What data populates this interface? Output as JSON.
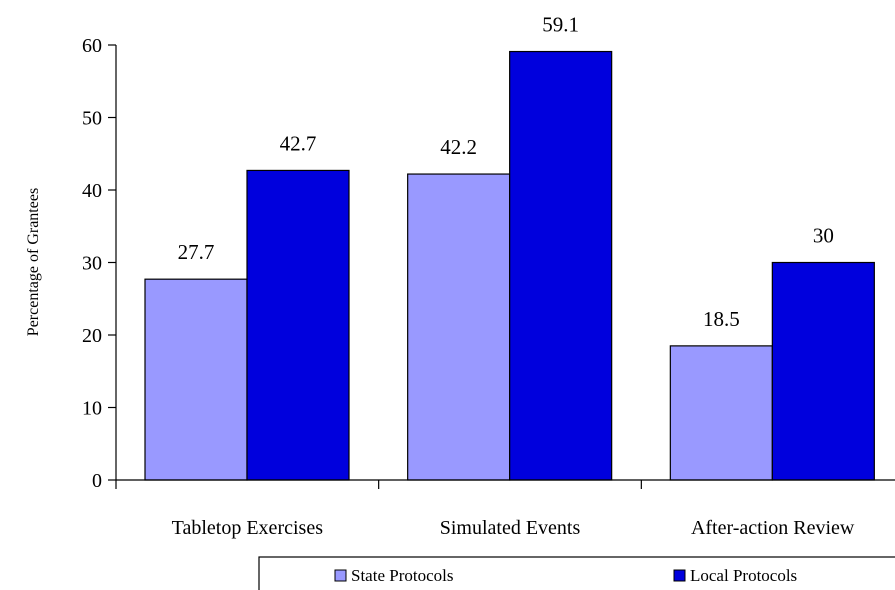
{
  "chart_data": {
    "type": "bar",
    "title": "",
    "xlabel": "",
    "ylabel": "Percentage of Grantees",
    "ylim": [
      0,
      60
    ],
    "yticks": [
      0,
      10,
      20,
      30,
      40,
      50,
      60
    ],
    "categories": [
      "Tabletop Exercises",
      "Simulated Events",
      "After-action Review"
    ],
    "series": [
      {
        "name": "State Protocols",
        "values": [
          27.7,
          42.2,
          18.5
        ],
        "color": "#9999ff"
      },
      {
        "name": "Local Protocols",
        "values": [
          42.7,
          59.1,
          30
        ],
        "color": "#0000dd"
      }
    ],
    "data_labels": [
      [
        "27.7",
        "42.2",
        "18.5"
      ],
      [
        "42.7",
        "59.1",
        "30"
      ]
    ],
    "grid": false,
    "legend_position": "bottom-right"
  }
}
